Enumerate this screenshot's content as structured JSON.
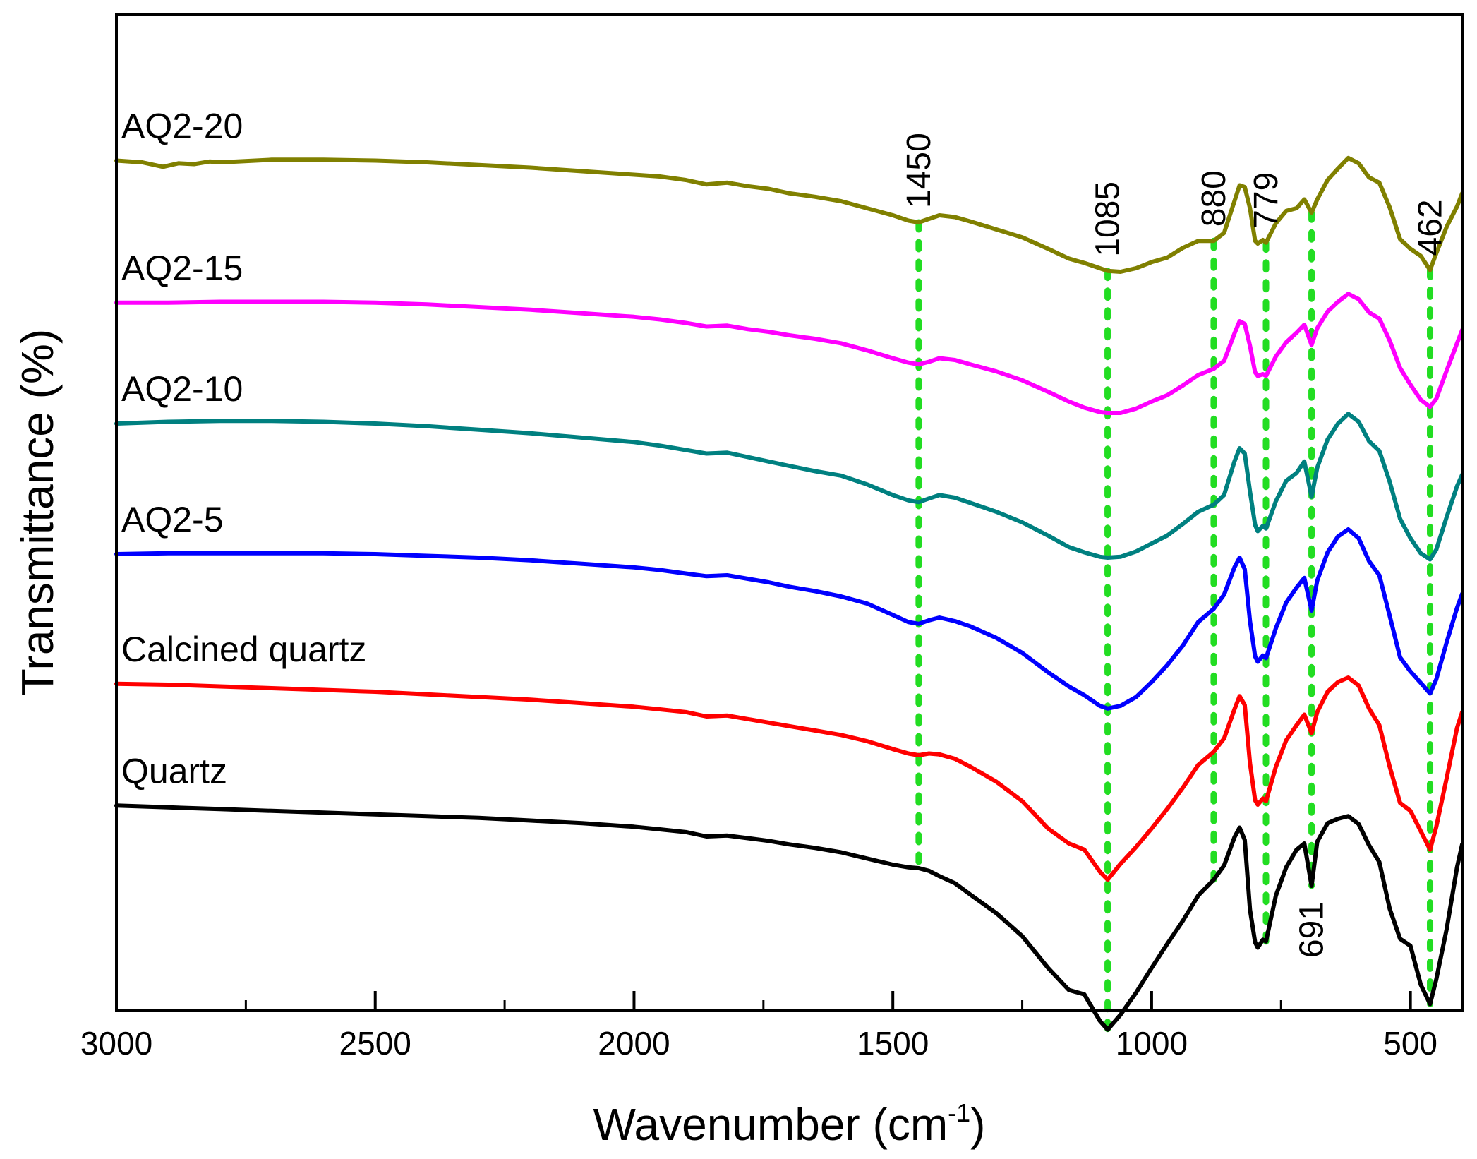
{
  "chart_data": {
    "type": "line",
    "title": "",
    "xlabel": "Wavenumber (cm",
    "xlabel_sup": "-1",
    "xlabel_close": ")",
    "ylabel": "Transmittance (%)",
    "xlim": [
      3000,
      400
    ],
    "ylim": [
      0,
      100
    ],
    "x_ticks": [
      3000,
      2500,
      2000,
      1500,
      1000,
      500
    ],
    "x_tick_labels": [
      "3000",
      "2500",
      "2000",
      "1500",
      "1000",
      "500"
    ],
    "x_minor_ticks": [
      2750,
      2250,
      1750,
      1250,
      750
    ],
    "y_ticks_shown": false,
    "grid": false,
    "legend": "inline labels at left",
    "peak_color": "#22dd22",
    "peaks": [
      {
        "x": 1450,
        "label": "1450",
        "label_pos": "top"
      },
      {
        "x": 1085,
        "label": "1085",
        "label_pos": "top"
      },
      {
        "x": 880,
        "label": "880",
        "label_pos": "top"
      },
      {
        "x": 779,
        "label": "779",
        "label_pos": "top"
      },
      {
        "x": 691,
        "label": "691",
        "label_pos": "bottom"
      },
      {
        "x": 462,
        "label": "462",
        "label_pos": "top"
      }
    ],
    "series": [
      {
        "name": "AQ2-20",
        "color": "#808000",
        "x": [
          3000,
          2950,
          2910,
          2880,
          2850,
          2820,
          2800,
          2700,
          2600,
          2500,
          2400,
          2300,
          2200,
          2100,
          2000,
          1950,
          1900,
          1860,
          1820,
          1780,
          1740,
          1700,
          1650,
          1600,
          1550,
          1500,
          1470,
          1450,
          1430,
          1410,
          1380,
          1350,
          1300,
          1250,
          1200,
          1160,
          1130,
          1100,
          1085,
          1060,
          1030,
          1000,
          970,
          940,
          910,
          880,
          860,
          840,
          830,
          820,
          810,
          800,
          795,
          785,
          779,
          760,
          740,
          720,
          705,
          691,
          680,
          660,
          640,
          620,
          600,
          580,
          560,
          540,
          520,
          500,
          480,
          462,
          450,
          430,
          410,
          400
        ],
        "values": [
          93.8,
          93.6,
          93.1,
          93.5,
          93.4,
          93.7,
          93.6,
          93.9,
          93.9,
          93.8,
          93.6,
          93.3,
          93.0,
          92.6,
          92.2,
          92.0,
          91.6,
          91.1,
          91.3,
          90.9,
          90.6,
          90.1,
          89.7,
          89.2,
          88.4,
          87.6,
          87.0,
          86.8,
          87.2,
          87.6,
          87.4,
          86.9,
          86.0,
          85.1,
          83.8,
          82.7,
          82.2,
          81.6,
          81.3,
          81.2,
          81.6,
          82.3,
          82.8,
          83.9,
          84.7,
          84.7,
          85.6,
          89.2,
          91.0,
          90.8,
          88.4,
          84.7,
          84.4,
          84.8,
          84.5,
          86.7,
          88.1,
          88.4,
          89.4,
          87.9,
          89.4,
          91.6,
          92.9,
          94.1,
          93.5,
          91.9,
          91.3,
          88.5,
          84.9,
          83.8,
          83.0,
          81.4,
          83.3,
          86.3,
          88.6,
          90.1
        ]
      },
      {
        "name": "AQ2-15",
        "color": "#ff00ff",
        "x": [
          3000,
          2900,
          2800,
          2700,
          2600,
          2500,
          2400,
          2300,
          2200,
          2100,
          2000,
          1950,
          1900,
          1860,
          1820,
          1780,
          1740,
          1700,
          1650,
          1600,
          1550,
          1500,
          1470,
          1450,
          1430,
          1410,
          1380,
          1350,
          1300,
          1250,
          1200,
          1160,
          1130,
          1100,
          1085,
          1060,
          1030,
          1000,
          970,
          940,
          910,
          880,
          860,
          840,
          830,
          820,
          810,
          800,
          795,
          785,
          779,
          760,
          740,
          720,
          705,
          691,
          680,
          660,
          640,
          620,
          600,
          580,
          560,
          540,
          520,
          500,
          480,
          462,
          450,
          430,
          410,
          400
        ],
        "values": [
          77.7,
          77.7,
          77.8,
          77.8,
          77.8,
          77.7,
          77.5,
          77.2,
          76.9,
          76.5,
          76.1,
          75.8,
          75.4,
          75.0,
          75.1,
          74.7,
          74.4,
          74.0,
          73.6,
          73.1,
          72.3,
          71.4,
          70.9,
          70.7,
          71.0,
          71.4,
          71.2,
          70.7,
          69.9,
          68.9,
          67.6,
          66.5,
          65.8,
          65.3,
          65.2,
          65.2,
          65.7,
          66.5,
          67.2,
          68.3,
          69.5,
          70.2,
          71.1,
          74.2,
          75.6,
          75.3,
          72.8,
          69.8,
          69.4,
          69.6,
          69.4,
          71.6,
          73.2,
          74.3,
          75.2,
          72.9,
          74.8,
          76.7,
          77.8,
          78.7,
          78.1,
          76.6,
          75.9,
          73.4,
          70.3,
          68.4,
          66.7,
          65.9,
          66.8,
          70.0,
          73.1,
          74.6
        ]
      },
      {
        "name": "AQ2-10",
        "color": "#008080",
        "x": [
          3000,
          2900,
          2800,
          2700,
          2600,
          2500,
          2400,
          2300,
          2200,
          2100,
          2000,
          1950,
          1900,
          1860,
          1820,
          1780,
          1740,
          1700,
          1650,
          1600,
          1550,
          1500,
          1470,
          1450,
          1430,
          1410,
          1380,
          1350,
          1300,
          1250,
          1200,
          1160,
          1130,
          1100,
          1085,
          1060,
          1030,
          1000,
          970,
          940,
          910,
          880,
          860,
          840,
          830,
          820,
          810,
          800,
          795,
          785,
          779,
          760,
          740,
          720,
          705,
          691,
          680,
          660,
          640,
          620,
          600,
          580,
          560,
          540,
          520,
          500,
          480,
          462,
          450,
          430,
          410,
          400
        ],
        "values": [
          64.0,
          64.2,
          64.3,
          64.3,
          64.2,
          64.0,
          63.7,
          63.3,
          62.9,
          62.4,
          61.9,
          61.5,
          61.0,
          60.6,
          60.7,
          60.2,
          59.7,
          59.2,
          58.6,
          58.1,
          57.1,
          55.9,
          55.3,
          55.1,
          55.5,
          55.9,
          55.6,
          55.0,
          54.0,
          52.8,
          51.3,
          50.0,
          49.4,
          48.9,
          48.8,
          48.9,
          49.5,
          50.4,
          51.3,
          52.6,
          54.0,
          54.8,
          55.9,
          59.7,
          61.2,
          60.6,
          56.3,
          52.5,
          51.8,
          52.4,
          52.1,
          55.2,
          57.5,
          58.4,
          59.7,
          55.7,
          59.0,
          62.2,
          64.0,
          65.1,
          64.2,
          62.0,
          60.9,
          57.4,
          53.2,
          51.0,
          49.3,
          48.6,
          49.7,
          53.4,
          56.9,
          58.2
        ]
      },
      {
        "name": "AQ2-5",
        "color": "#0000ff",
        "x": [
          3000,
          2900,
          2800,
          2700,
          2600,
          2500,
          2400,
          2300,
          2200,
          2100,
          2000,
          1950,
          1900,
          1860,
          1820,
          1780,
          1740,
          1700,
          1650,
          1600,
          1550,
          1500,
          1470,
          1450,
          1430,
          1410,
          1380,
          1350,
          1300,
          1250,
          1200,
          1160,
          1130,
          1100,
          1085,
          1060,
          1030,
          1000,
          970,
          940,
          910,
          880,
          860,
          840,
          830,
          820,
          810,
          800,
          795,
          785,
          779,
          760,
          740,
          720,
          705,
          691,
          680,
          660,
          640,
          620,
          600,
          580,
          560,
          540,
          520,
          500,
          480,
          462,
          450,
          430,
          410,
          400
        ],
        "values": [
          49.2,
          49.3,
          49.3,
          49.3,
          49.3,
          49.2,
          49.0,
          48.8,
          48.5,
          48.1,
          47.7,
          47.4,
          47.0,
          46.7,
          46.8,
          46.4,
          46.0,
          45.5,
          45.0,
          44.4,
          43.6,
          42.3,
          41.5,
          41.3,
          41.7,
          42.0,
          41.6,
          41.0,
          39.7,
          38.0,
          35.8,
          34.2,
          33.2,
          32.0,
          31.7,
          32.0,
          33.0,
          34.7,
          36.6,
          38.8,
          41.5,
          43.0,
          44.6,
          47.7,
          48.8,
          47.5,
          41.6,
          37.6,
          37.0,
          37.7,
          37.4,
          40.8,
          43.7,
          45.4,
          46.5,
          42.8,
          46.2,
          49.4,
          51.2,
          52.0,
          51.0,
          48.4,
          46.8,
          42.2,
          37.5,
          35.9,
          34.6,
          33.4,
          35.0,
          39.2,
          43.1,
          44.7
        ]
      },
      {
        "name": "Calcined quartz",
        "color": "#ff0000",
        "x": [
          3000,
          2900,
          2800,
          2700,
          2600,
          2500,
          2400,
          2300,
          2200,
          2100,
          2000,
          1950,
          1900,
          1860,
          1820,
          1780,
          1740,
          1700,
          1650,
          1600,
          1550,
          1500,
          1470,
          1450,
          1430,
          1410,
          1380,
          1350,
          1300,
          1250,
          1200,
          1160,
          1130,
          1100,
          1085,
          1060,
          1030,
          1000,
          970,
          940,
          910,
          880,
          860,
          840,
          830,
          820,
          810,
          800,
          795,
          785,
          779,
          760,
          740,
          720,
          705,
          691,
          680,
          660,
          640,
          620,
          600,
          580,
          560,
          540,
          520,
          500,
          480,
          462,
          450,
          430,
          410,
          400
        ],
        "values": [
          34.5,
          34.4,
          34.2,
          34.0,
          33.8,
          33.6,
          33.3,
          33.0,
          32.7,
          32.3,
          31.9,
          31.6,
          31.3,
          30.8,
          30.9,
          30.5,
          30.1,
          29.7,
          29.2,
          28.7,
          28.0,
          27.1,
          26.6,
          26.4,
          26.6,
          26.5,
          26.0,
          25.1,
          23.4,
          21.2,
          18.1,
          16.4,
          15.7,
          13.2,
          12.3,
          14.1,
          16.0,
          18.1,
          20.3,
          22.7,
          25.3,
          26.8,
          28.3,
          31.6,
          33.1,
          32.1,
          25.5,
          21.3,
          20.8,
          21.5,
          21.2,
          25.1,
          28.1,
          29.8,
          31.0,
          28.9,
          31.3,
          33.6,
          34.7,
          35.2,
          34.3,
          31.7,
          29.8,
          25.1,
          21.0,
          20.1,
          17.8,
          15.7,
          18.3,
          23.8,
          29.5,
          31.3
        ]
      },
      {
        "name": "Quartz",
        "color": "#000000",
        "x": [
          3000,
          2900,
          2800,
          2700,
          2600,
          2500,
          2400,
          2300,
          2200,
          2100,
          2000,
          1950,
          1900,
          1860,
          1820,
          1780,
          1740,
          1700,
          1650,
          1600,
          1550,
          1500,
          1470,
          1450,
          1430,
          1410,
          1380,
          1350,
          1300,
          1250,
          1200,
          1160,
          1130,
          1100,
          1085,
          1060,
          1030,
          1000,
          970,
          940,
          910,
          880,
          860,
          840,
          830,
          820,
          810,
          800,
          795,
          785,
          779,
          760,
          740,
          720,
          705,
          691,
          680,
          660,
          640,
          620,
          600,
          580,
          560,
          540,
          520,
          500,
          480,
          462,
          450,
          430,
          410,
          400
        ],
        "values": [
          20.7,
          20.5,
          20.3,
          20.1,
          19.9,
          19.7,
          19.5,
          19.3,
          19.0,
          18.7,
          18.3,
          18.0,
          17.7,
          17.2,
          17.3,
          17.0,
          16.7,
          16.3,
          15.9,
          15.4,
          14.7,
          14.0,
          13.7,
          13.6,
          13.3,
          12.7,
          11.9,
          10.6,
          8.5,
          5.9,
          2.3,
          -0.2,
          -0.7,
          -3.7,
          -4.7,
          -3.0,
          -0.5,
          2.3,
          5.0,
          7.6,
          10.5,
          12.3,
          13.9,
          17.1,
          18.2,
          16.8,
          8.9,
          5.2,
          4.6,
          5.5,
          5.3,
          10.5,
          13.7,
          15.7,
          16.4,
          11.6,
          16.6,
          18.7,
          19.2,
          19.5,
          18.6,
          16.2,
          14.3,
          9.0,
          5.6,
          4.8,
          0.4,
          -1.8,
          1.0,
          6.7,
          13.7,
          16.3
        ]
      }
    ]
  }
}
